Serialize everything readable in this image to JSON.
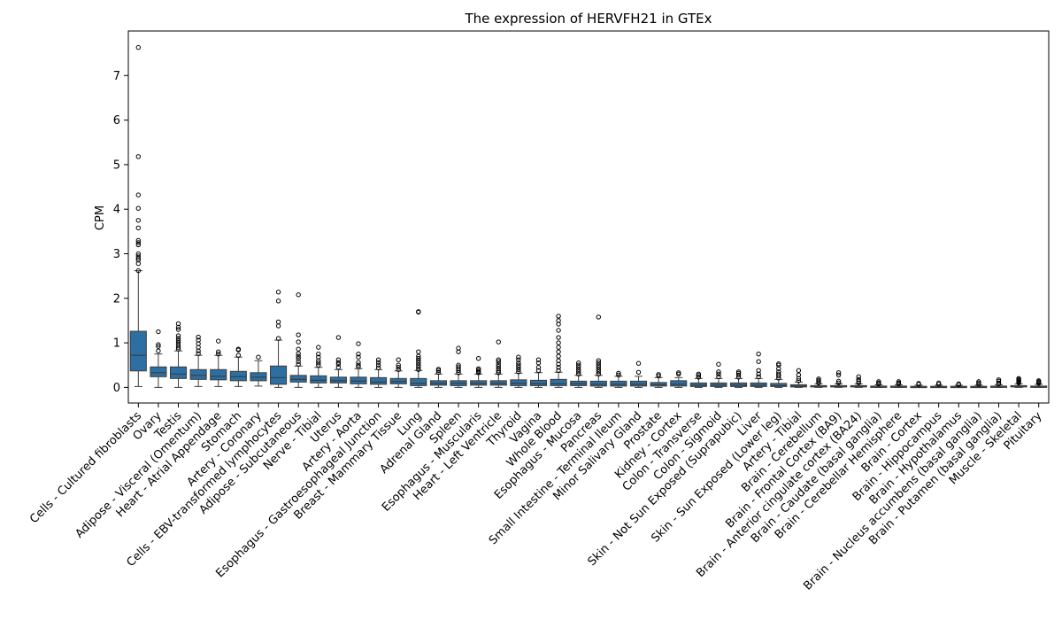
{
  "chart_data": {
    "type": "box",
    "title": "The expression of HERVFH21 in GTEx",
    "xlabel": "",
    "ylabel": "CPM",
    "ylim": [
      -0.35,
      8.0
    ],
    "yticks": [
      0,
      1,
      2,
      3,
      4,
      5,
      6,
      7
    ],
    "grid": false,
    "box_color": "#2b6fa3",
    "categories": [
      "Cells - Cultured fibroblasts",
      "Ovary",
      "Testis",
      "Adipose - Visceral (Omentum)",
      "Heart - Atrial Appendage",
      "Stomach",
      "Artery - Coronary",
      "Cells - EBV-transformed lymphocytes",
      "Adipose - Subcutaneous",
      "Nerve - Tibial",
      "Uterus",
      "Artery - Aorta",
      "Esophagus - Gastroesophageal Junction",
      "Breast - Mammary Tissue",
      "Lung",
      "Adrenal Gland",
      "Spleen",
      "Esophagus - Muscularis",
      "Heart - Left Ventricle",
      "Thyroid",
      "Vagina",
      "Whole Blood",
      "Esophagus - Mucosa",
      "Pancreas",
      "Small Intestine - Terminal Ileum",
      "Minor Salivary Gland",
      "Prostate",
      "Kidney - Cortex",
      "Colon - Transverse",
      "Colon - Sigmoid",
      "Skin - Not Sun Exposed (Suprapubic)",
      "Liver",
      "Skin - Sun Exposed (Lower leg)",
      "Artery - Tibial",
      "Brain - Cerebellum",
      "Brain - Frontal Cortex (BA9)",
      "Brain - Anterior cingulate cortex (BA24)",
      "Brain - Caudate (basal ganglia)",
      "Brain - Cerebellar Hemisphere",
      "Brain - Cortex",
      "Brain - Hippocampus",
      "Brain - Hypothalamus",
      "Brain - Nucleus accumbens (basal ganglia)",
      "Brain - Putamen (basal ganglia)",
      "Muscle - Skeletal",
      "Pituitary"
    ],
    "boxes": [
      {
        "whislo": 0.02,
        "q1": 0.37,
        "med": 0.72,
        "q3": 1.26,
        "whishi": 2.62,
        "fliers": [
          2.62,
          2.78,
          2.86,
          2.9,
          2.95,
          3.0,
          3.2,
          3.25,
          3.3,
          3.58,
          3.75,
          4.02,
          4.32,
          5.18,
          7.63
        ]
      },
      {
        "whislo": 0.0,
        "q1": 0.24,
        "med": 0.33,
        "q3": 0.46,
        "whishi": 0.75,
        "fliers": [
          0.82,
          0.92,
          0.96,
          1.25
        ]
      },
      {
        "whislo": 0.0,
        "q1": 0.2,
        "med": 0.3,
        "q3": 0.46,
        "whishi": 0.82,
        "fliers": [
          0.86,
          0.9,
          0.95,
          1.0,
          1.05,
          1.1,
          1.16,
          1.3,
          1.35,
          1.43
        ]
      },
      {
        "whislo": 0.02,
        "q1": 0.18,
        "med": 0.27,
        "q3": 0.4,
        "whishi": 0.72,
        "fliers": [
          0.76,
          0.82,
          0.9,
          0.98,
          1.06,
          1.13
        ]
      },
      {
        "whislo": 0.02,
        "q1": 0.17,
        "med": 0.25,
        "q3": 0.4,
        "whishi": 0.72,
        "fliers": [
          0.75,
          0.8,
          1.04
        ]
      },
      {
        "whislo": 0.02,
        "q1": 0.15,
        "med": 0.24,
        "q3": 0.36,
        "whishi": 0.68,
        "fliers": [
          0.72,
          0.84,
          0.86
        ]
      },
      {
        "whislo": 0.03,
        "q1": 0.15,
        "med": 0.23,
        "q3": 0.33,
        "whishi": 0.6,
        "fliers": [
          0.68
        ]
      },
      {
        "whislo": 0.0,
        "q1": 0.07,
        "med": 0.22,
        "q3": 0.48,
        "whishi": 1.06,
        "fliers": [
          1.1,
          1.38,
          1.47,
          1.94,
          2.14
        ]
      },
      {
        "whislo": 0.0,
        "q1": 0.12,
        "med": 0.18,
        "q3": 0.27,
        "whishi": 0.48,
        "fliers": [
          0.52,
          0.58,
          0.65,
          0.7,
          0.76,
          0.86,
          1.02,
          1.18,
          2.08
        ]
      },
      {
        "whislo": 0.0,
        "q1": 0.1,
        "med": 0.16,
        "q3": 0.26,
        "whishi": 0.45,
        "fliers": [
          0.5,
          0.55,
          0.6,
          0.68,
          0.75,
          0.9
        ]
      },
      {
        "whislo": 0.0,
        "q1": 0.1,
        "med": 0.15,
        "q3": 0.23,
        "whishi": 0.4,
        "fliers": [
          0.45,
          0.52,
          0.56,
          0.62,
          1.12
        ]
      },
      {
        "whislo": 0.0,
        "q1": 0.08,
        "med": 0.14,
        "q3": 0.23,
        "whishi": 0.42,
        "fliers": [
          0.46,
          0.5,
          0.56,
          0.68,
          0.75,
          0.98
        ]
      },
      {
        "whislo": 0.0,
        "q1": 0.07,
        "med": 0.12,
        "q3": 0.22,
        "whishi": 0.4,
        "fliers": [
          0.44,
          0.5,
          0.56,
          0.62
        ]
      },
      {
        "whislo": 0.0,
        "q1": 0.08,
        "med": 0.13,
        "q3": 0.2,
        "whishi": 0.37,
        "fliers": [
          0.4,
          0.45,
          0.5,
          0.62
        ]
      },
      {
        "whislo": 0.0,
        "q1": 0.04,
        "med": 0.09,
        "q3": 0.2,
        "whishi": 0.38,
        "fliers": [
          0.4,
          0.45,
          0.5,
          0.55,
          0.6,
          0.65,
          0.7,
          0.8,
          1.69,
          1.7
        ]
      },
      {
        "whislo": 0.0,
        "q1": 0.05,
        "med": 0.09,
        "q3": 0.15,
        "whishi": 0.3,
        "fliers": [
          0.34,
          0.38,
          0.41
        ]
      },
      {
        "whislo": 0.0,
        "q1": 0.04,
        "med": 0.09,
        "q3": 0.15,
        "whishi": 0.3,
        "fliers": [
          0.33,
          0.38,
          0.42,
          0.46,
          0.5,
          0.8,
          0.88
        ]
      },
      {
        "whislo": 0.0,
        "q1": 0.05,
        "med": 0.09,
        "q3": 0.15,
        "whishi": 0.3,
        "fliers": [
          0.33,
          0.36,
          0.39,
          0.42,
          0.65
        ]
      },
      {
        "whislo": 0.0,
        "q1": 0.05,
        "med": 0.09,
        "q3": 0.15,
        "whishi": 0.3,
        "fliers": [
          0.33,
          0.37,
          0.42,
          0.47,
          0.52,
          0.58,
          0.62,
          1.02
        ]
      },
      {
        "whislo": 0.0,
        "q1": 0.04,
        "med": 0.09,
        "q3": 0.17,
        "whishi": 0.32,
        "fliers": [
          0.35,
          0.4,
          0.45,
          0.5,
          0.55,
          0.62,
          0.68
        ]
      },
      {
        "whislo": 0.0,
        "q1": 0.04,
        "med": 0.08,
        "q3": 0.16,
        "whishi": 0.33,
        "fliers": [
          0.38,
          0.45,
          0.55,
          0.62
        ]
      },
      {
        "whislo": 0.0,
        "q1": 0.04,
        "med": 0.08,
        "q3": 0.18,
        "whishi": 0.34,
        "fliers": [
          0.38,
          0.45,
          0.52,
          0.6,
          0.7,
          0.8,
          0.9,
          1.0,
          1.12,
          1.28,
          1.42,
          1.5,
          1.6
        ]
      },
      {
        "whislo": 0.0,
        "q1": 0.04,
        "med": 0.08,
        "q3": 0.14,
        "whishi": 0.27,
        "fliers": [
          0.3,
          0.35,
          0.4,
          0.45,
          0.5,
          0.55
        ]
      },
      {
        "whislo": 0.0,
        "q1": 0.03,
        "med": 0.07,
        "q3": 0.14,
        "whishi": 0.27,
        "fliers": [
          0.3,
          0.35,
          0.4,
          0.45,
          0.5,
          0.55,
          0.6,
          1.58
        ]
      },
      {
        "whislo": 0.0,
        "q1": 0.03,
        "med": 0.07,
        "q3": 0.14,
        "whishi": 0.25,
        "fliers": [
          0.28,
          0.32
        ]
      },
      {
        "whislo": 0.0,
        "q1": 0.03,
        "med": 0.07,
        "q3": 0.14,
        "whishi": 0.25,
        "fliers": [
          0.34,
          0.54
        ]
      },
      {
        "whislo": 0.0,
        "q1": 0.03,
        "med": 0.06,
        "q3": 0.11,
        "whishi": 0.22,
        "fliers": [
          0.26,
          0.29
        ]
      },
      {
        "whislo": 0.0,
        "q1": 0.03,
        "med": 0.07,
        "q3": 0.15,
        "whishi": 0.22,
        "fliers": [
          0.3,
          0.33
        ]
      },
      {
        "whislo": 0.0,
        "q1": 0.02,
        "med": 0.05,
        "q3": 0.1,
        "whishi": 0.2,
        "fliers": [
          0.23,
          0.27,
          0.3
        ]
      },
      {
        "whislo": 0.0,
        "q1": 0.02,
        "med": 0.05,
        "q3": 0.1,
        "whishi": 0.2,
        "fliers": [
          0.24,
          0.3,
          0.35,
          0.52
        ]
      },
      {
        "whislo": 0.0,
        "q1": 0.02,
        "med": 0.05,
        "q3": 0.1,
        "whishi": 0.2,
        "fliers": [
          0.23,
          0.28,
          0.32,
          0.35
        ]
      },
      {
        "whislo": 0.0,
        "q1": 0.02,
        "med": 0.05,
        "q3": 0.1,
        "whishi": 0.2,
        "fliers": [
          0.24,
          0.3,
          0.38,
          0.58,
          0.75
        ]
      },
      {
        "whislo": 0.0,
        "q1": 0.02,
        "med": 0.04,
        "q3": 0.09,
        "whishi": 0.18,
        "fliers": [
          0.21,
          0.26,
          0.3,
          0.35,
          0.42,
          0.5,
          0.53
        ]
      },
      {
        "whislo": 0.0,
        "q1": 0.01,
        "med": 0.03,
        "q3": 0.06,
        "whishi": 0.12,
        "fliers": [
          0.15,
          0.2,
          0.28,
          0.38
        ]
      },
      {
        "whislo": 0.0,
        "q1": 0.01,
        "med": 0.02,
        "q3": 0.04,
        "whishi": 0.08,
        "fliers": [
          0.1,
          0.13,
          0.16,
          0.19
        ]
      },
      {
        "whislo": 0.0,
        "q1": 0.01,
        "med": 0.02,
        "q3": 0.04,
        "whishi": 0.08,
        "fliers": [
          0.1,
          0.14,
          0.28,
          0.33
        ]
      },
      {
        "whislo": 0.0,
        "q1": 0.01,
        "med": 0.02,
        "q3": 0.04,
        "whishi": 0.08,
        "fliers": [
          0.1,
          0.14,
          0.18,
          0.24
        ]
      },
      {
        "whislo": 0.0,
        "q1": 0.005,
        "med": 0.015,
        "q3": 0.03,
        "whishi": 0.06,
        "fliers": [
          0.08,
          0.1,
          0.13
        ]
      },
      {
        "whislo": 0.0,
        "q1": 0.005,
        "med": 0.015,
        "q3": 0.03,
        "whishi": 0.06,
        "fliers": [
          0.08,
          0.1,
          0.13
        ]
      },
      {
        "whislo": 0.0,
        "q1": 0.005,
        "med": 0.01,
        "q3": 0.025,
        "whishi": 0.05,
        "fliers": [
          0.07,
          0.09
        ]
      },
      {
        "whislo": 0.0,
        "q1": 0.005,
        "med": 0.01,
        "q3": 0.025,
        "whishi": 0.05,
        "fliers": [
          0.07,
          0.1
        ]
      },
      {
        "whislo": 0.0,
        "q1": 0.005,
        "med": 0.01,
        "q3": 0.025,
        "whishi": 0.05,
        "fliers": [
          0.06,
          0.08
        ]
      },
      {
        "whislo": 0.0,
        "q1": 0.005,
        "med": 0.01,
        "q3": 0.025,
        "whishi": 0.05,
        "fliers": [
          0.07,
          0.1,
          0.13
        ]
      },
      {
        "whislo": 0.0,
        "q1": 0.005,
        "med": 0.015,
        "q3": 0.03,
        "whishi": 0.06,
        "fliers": [
          0.08,
          0.1,
          0.14,
          0.17
        ]
      },
      {
        "whislo": 0.0,
        "q1": 0.01,
        "med": 0.02,
        "q3": 0.04,
        "whishi": 0.08,
        "fliers": [
          0.1,
          0.12,
          0.14,
          0.16,
          0.18,
          0.2
        ]
      },
      {
        "whislo": 0.0,
        "q1": 0.005,
        "med": 0.015,
        "q3": 0.03,
        "whishi": 0.07,
        "fliers": [
          0.09,
          0.11,
          0.13,
          0.15
        ]
      }
    ]
  }
}
